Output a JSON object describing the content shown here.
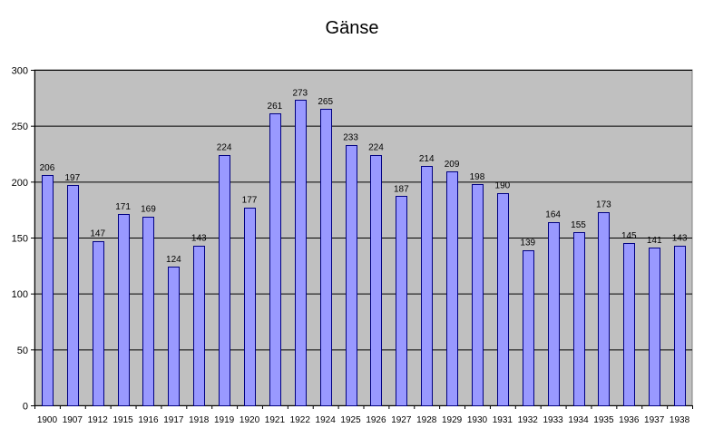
{
  "chart_data": {
    "type": "bar",
    "title": "Gänse",
    "xlabel": "",
    "ylabel": "",
    "ylim": [
      0,
      300
    ],
    "yticks": [
      0,
      50,
      100,
      150,
      200,
      250,
      300
    ],
    "grid": true,
    "legend": "none",
    "categories": [
      "1900",
      "1907",
      "1912",
      "1915",
      "1916",
      "1917",
      "1918",
      "1919",
      "1920",
      "1921",
      "1922",
      "1924",
      "1925",
      "1926",
      "1927",
      "1928",
      "1929",
      "1930",
      "1931",
      "1932",
      "1933",
      "1934",
      "1935",
      "1936",
      "1937",
      "1938"
    ],
    "values": [
      206,
      197,
      147,
      171,
      169,
      124,
      143,
      224,
      177,
      261,
      273,
      265,
      233,
      224,
      187,
      214,
      209,
      198,
      190,
      139,
      164,
      155,
      173,
      145,
      141,
      143
    ],
    "colors": {
      "bar_fill": "#9999ff",
      "bar_stroke": "#000080",
      "plot_background": "#c0c0c0",
      "gridline": "#000000"
    }
  }
}
